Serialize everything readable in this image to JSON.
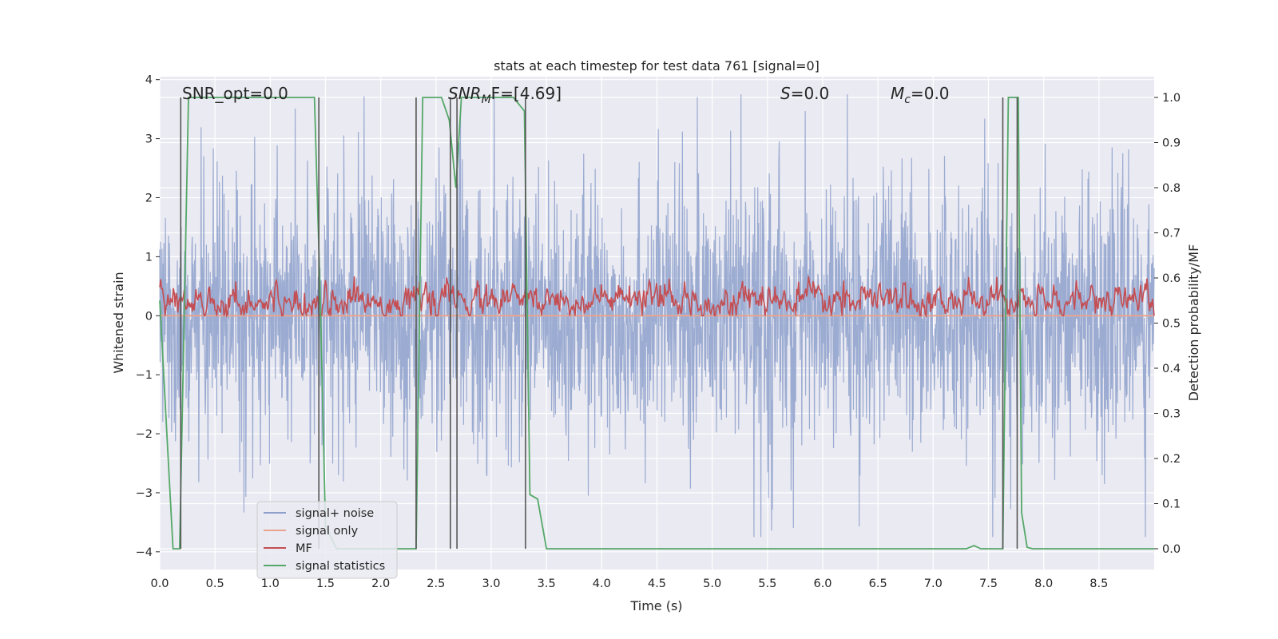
{
  "chart_data": {
    "type": "line",
    "title": "stats at each timestep for test data 761 [signal=0]",
    "xlabel": "Time (s)",
    "ylabel": "Whitened strain",
    "y2label": "Detection probability/MF",
    "xlim": [
      0.0,
      9.0
    ],
    "ylim": [
      -4.3,
      4.05
    ],
    "y2lim": [
      -0.046,
      1.046
    ],
    "xticks": [
      0.0,
      0.5,
      1.0,
      1.5,
      2.0,
      2.5,
      3.0,
      3.5,
      4.0,
      4.5,
      5.0,
      5.5,
      6.0,
      6.5,
      7.0,
      7.5,
      8.0,
      8.5
    ],
    "xtick_labels": [
      "0.0",
      "0.5",
      "1.0",
      "1.5",
      "2.0",
      "2.5",
      "3.0",
      "3.5",
      "4.0",
      "4.5",
      "5.0",
      "5.5",
      "6.0",
      "6.5",
      "7.0",
      "7.5",
      "8.0",
      "8.5"
    ],
    "yticks": [
      -4,
      -3,
      -2,
      -1,
      0,
      1,
      2,
      3,
      4
    ],
    "ytick_labels": [
      "−4",
      "−3",
      "−2",
      "−1",
      "0",
      "1",
      "2",
      "3",
      "4"
    ],
    "y2ticks": [
      0.0,
      0.1,
      0.2,
      0.3,
      0.4,
      0.5,
      0.6,
      0.7,
      0.8,
      0.9,
      1.0
    ],
    "y2tick_labels": [
      "0.0",
      "0.1",
      "0.2",
      "0.3",
      "0.4",
      "0.5",
      "0.6",
      "0.7",
      "0.8",
      "0.9",
      "1.0"
    ],
    "grid": true,
    "legend_position": "bottom-left",
    "annotations": {
      "snr_opt": "SNR_opt=0.0",
      "snr_mf_label": "SNR",
      "snr_mf_sub": "M",
      "snr_mf_rest": "F=[4.69]",
      "s_label": "S",
      "s_rest": "=0.0",
      "mc_label": "M",
      "mc_sub": "c",
      "mc_rest": "=0.0"
    },
    "series": [
      {
        "name": "signal+ noise",
        "color": "#8da0cb",
        "axis": "left",
        "description_values": "whitened strain noise, roughly within -3.7 to 3.7"
      },
      {
        "name": "signal only",
        "color": "#e8a48f",
        "axis": "left",
        "values_constant": 0.0
      },
      {
        "name": "MF",
        "color": "#c44e52",
        "axis": "left",
        "value_range": [
          0.0,
          0.9
        ]
      },
      {
        "name": "signal statistics",
        "color": "#55a868",
        "axis": "right",
        "x": [
          0.0,
          0.12,
          0.18,
          0.26,
          0.35,
          1.0,
          1.4,
          1.45,
          1.5,
          1.6,
          2.0,
          2.25,
          2.32,
          2.38,
          2.42,
          2.55,
          2.62,
          2.68,
          2.73,
          2.8,
          3.2,
          3.3,
          3.35,
          3.42,
          3.5,
          7.3,
          7.37,
          7.43,
          7.63,
          7.68,
          7.77,
          7.8,
          7.85,
          7.9,
          9.0
        ],
        "y": [
          0.55,
          0.0,
          0.0,
          1.0,
          1.0,
          1.0,
          1.0,
          0.58,
          0.05,
          0.0,
          0.0,
          0.0,
          0.0,
          1.0,
          1.0,
          1.0,
          0.95,
          0.8,
          1.0,
          1.0,
          1.0,
          0.97,
          0.12,
          0.11,
          0.0,
          0.0,
          0.007,
          0.0,
          0.0,
          1.0,
          1.0,
          0.08,
          0.003,
          0.0,
          0.0
        ]
      }
    ],
    "vertical_markers": [
      0.19,
      1.44,
      2.32,
      2.63,
      2.69,
      3.31,
      7.63,
      7.76
    ],
    "marker_color": "#555555"
  }
}
